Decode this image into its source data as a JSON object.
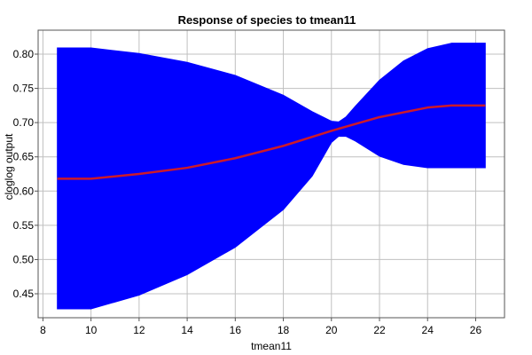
{
  "chart_data": {
    "type": "area",
    "title": "Response of species to tmean11",
    "xlabel": "tmean11",
    "ylabel": "cloglog output",
    "xlim": [
      7.8,
      27.2
    ],
    "ylim": [
      0.415,
      0.835
    ],
    "grid": true,
    "x_ticks": [
      8,
      10,
      12,
      14,
      16,
      18,
      20,
      22,
      24,
      26
    ],
    "y_ticks": [
      0.45,
      0.5,
      0.55,
      0.6,
      0.65,
      0.7,
      0.75,
      0.8
    ],
    "series": [
      {
        "color": "#0000ff",
        "kind": "band",
        "x": [
          8.6,
          10.0,
          12.0,
          14.0,
          16.0,
          18.0,
          19.2,
          20.0,
          20.3,
          20.6,
          21.0,
          22.0,
          23.0,
          24.0,
          25.0,
          26.4
        ],
        "upper": [
          0.809,
          0.809,
          0.801,
          0.788,
          0.769,
          0.74,
          0.716,
          0.702,
          0.701,
          0.708,
          0.724,
          0.762,
          0.79,
          0.808,
          0.816,
          0.816
        ],
        "lower": [
          0.428,
          0.428,
          0.448,
          0.478,
          0.518,
          0.573,
          0.622,
          0.671,
          0.68,
          0.68,
          0.673,
          0.651,
          0.639,
          0.634,
          0.634,
          0.634
        ]
      },
      {
        "color": "#cc1a2a",
        "kind": "line",
        "x": [
          8.6,
          10.0,
          12.0,
          14.0,
          16.0,
          18.0,
          20.0,
          22.0,
          24.0,
          25.0,
          26.4
        ],
        "y": [
          0.618,
          0.618,
          0.625,
          0.634,
          0.648,
          0.666,
          0.688,
          0.708,
          0.722,
          0.725,
          0.725
        ]
      }
    ]
  }
}
